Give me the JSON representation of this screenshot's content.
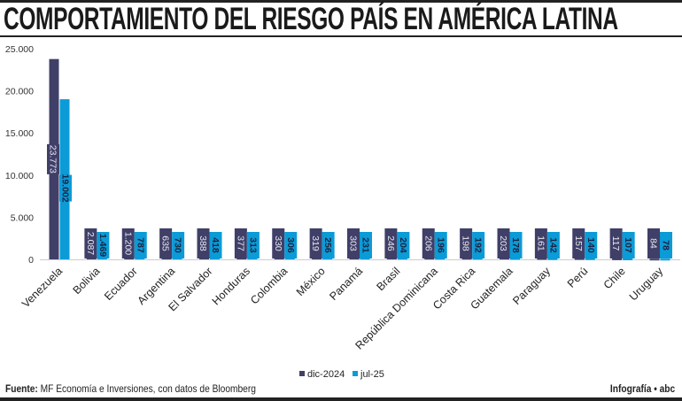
{
  "title": "COMPORTAMIENTO DEL RIESGO PAÍS EN AMÉRICA LATINA",
  "source_label": "Fuente:",
  "source_text": "MF Economía e Inversiones, con datos de Bloomberg",
  "credit": "Infografía • abc",
  "chart_data": {
    "type": "bar",
    "title": "",
    "xlabel": "",
    "ylabel": "",
    "ylim": [
      0,
      25000
    ],
    "yticks": [
      "0",
      "5.000",
      "10.000",
      "15.000",
      "20.000",
      "25.000"
    ],
    "ytick_values": [
      0,
      5000,
      10000,
      15000,
      20000,
      25000
    ],
    "grid": false,
    "legend_position": "bottom",
    "categories": [
      "Venezuela",
      "Bolivia",
      "Ecuador",
      "Argentina",
      "El Salvador",
      "Honduras",
      "Colombia",
      "México",
      "Panamá",
      "Brasil",
      "República Dominicana",
      "Costa Rica",
      "Guatemala",
      "Paraguay",
      "Perú",
      "Chile",
      "Uruguay"
    ],
    "series": [
      {
        "name": "dic-2024",
        "color": "#403f68",
        "values": [
          23773,
          2087,
          1200,
          635,
          388,
          377,
          330,
          319,
          303,
          246,
          206,
          198,
          203,
          161,
          157,
          117,
          84
        ],
        "labels": [
          "23.773",
          "2.087",
          "1.200",
          "635",
          "388",
          "377",
          "330",
          "319",
          "303",
          "246",
          "206",
          "198",
          "203",
          "161",
          "157",
          "117",
          "84"
        ]
      },
      {
        "name": "jul-25",
        "color": "#0b9bd7",
        "values": [
          19002,
          1469,
          787,
          730,
          418,
          313,
          306,
          256,
          231,
          204,
          196,
          192,
          178,
          142,
          140,
          107,
          78
        ],
        "labels": [
          "19.002",
          "1.469",
          "787",
          "730",
          "418",
          "313",
          "306",
          "256",
          "231",
          "204",
          "196",
          "192",
          "178",
          "142",
          "140",
          "107",
          "78"
        ]
      }
    ]
  }
}
